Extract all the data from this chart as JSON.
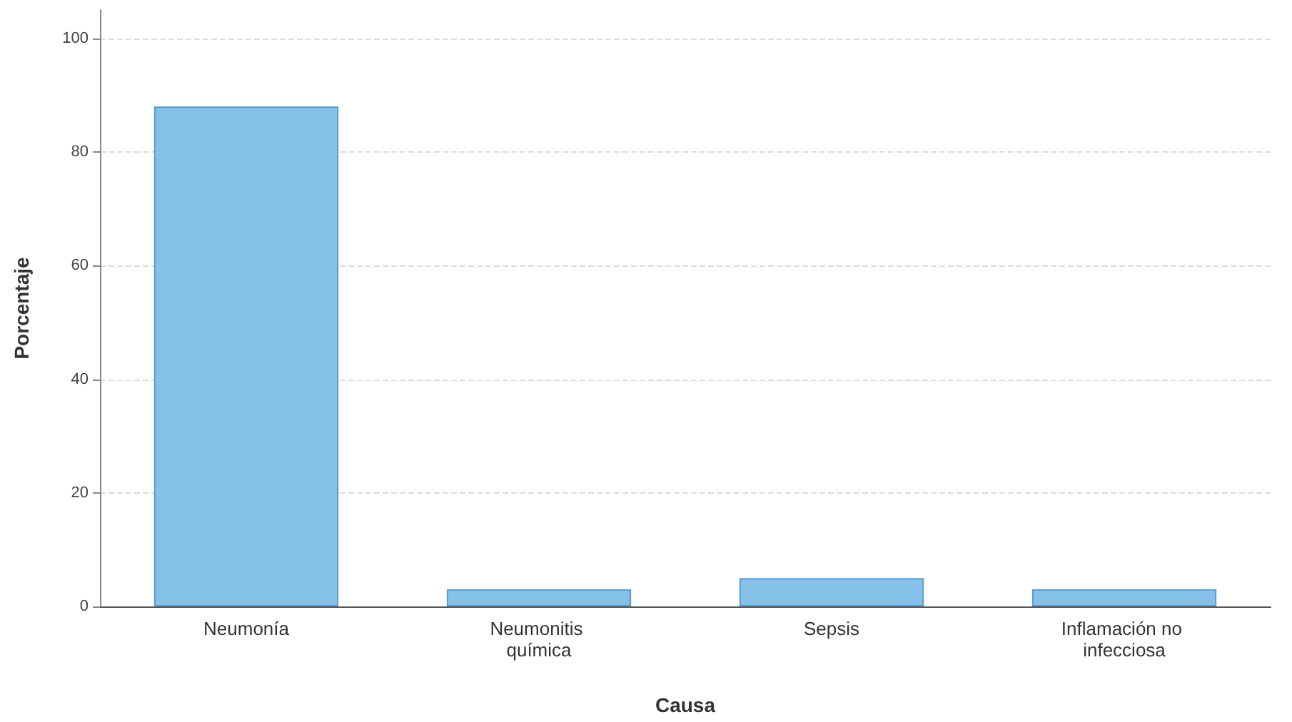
{
  "chart_data": {
    "type": "bar",
    "xlabel": "Causa",
    "ylabel": "Porcentaje",
    "categories": [
      "Neumonía",
      "Neumonitis química",
      "Sepsis",
      "Inflamación no infecciosa"
    ],
    "values": [
      88,
      3,
      5,
      3
    ],
    "color": "#86c1ea",
    "ylim": [
      0,
      105
    ],
    "yticks": [
      0,
      20,
      40,
      60,
      80,
      100
    ],
    "grid": "y"
  }
}
